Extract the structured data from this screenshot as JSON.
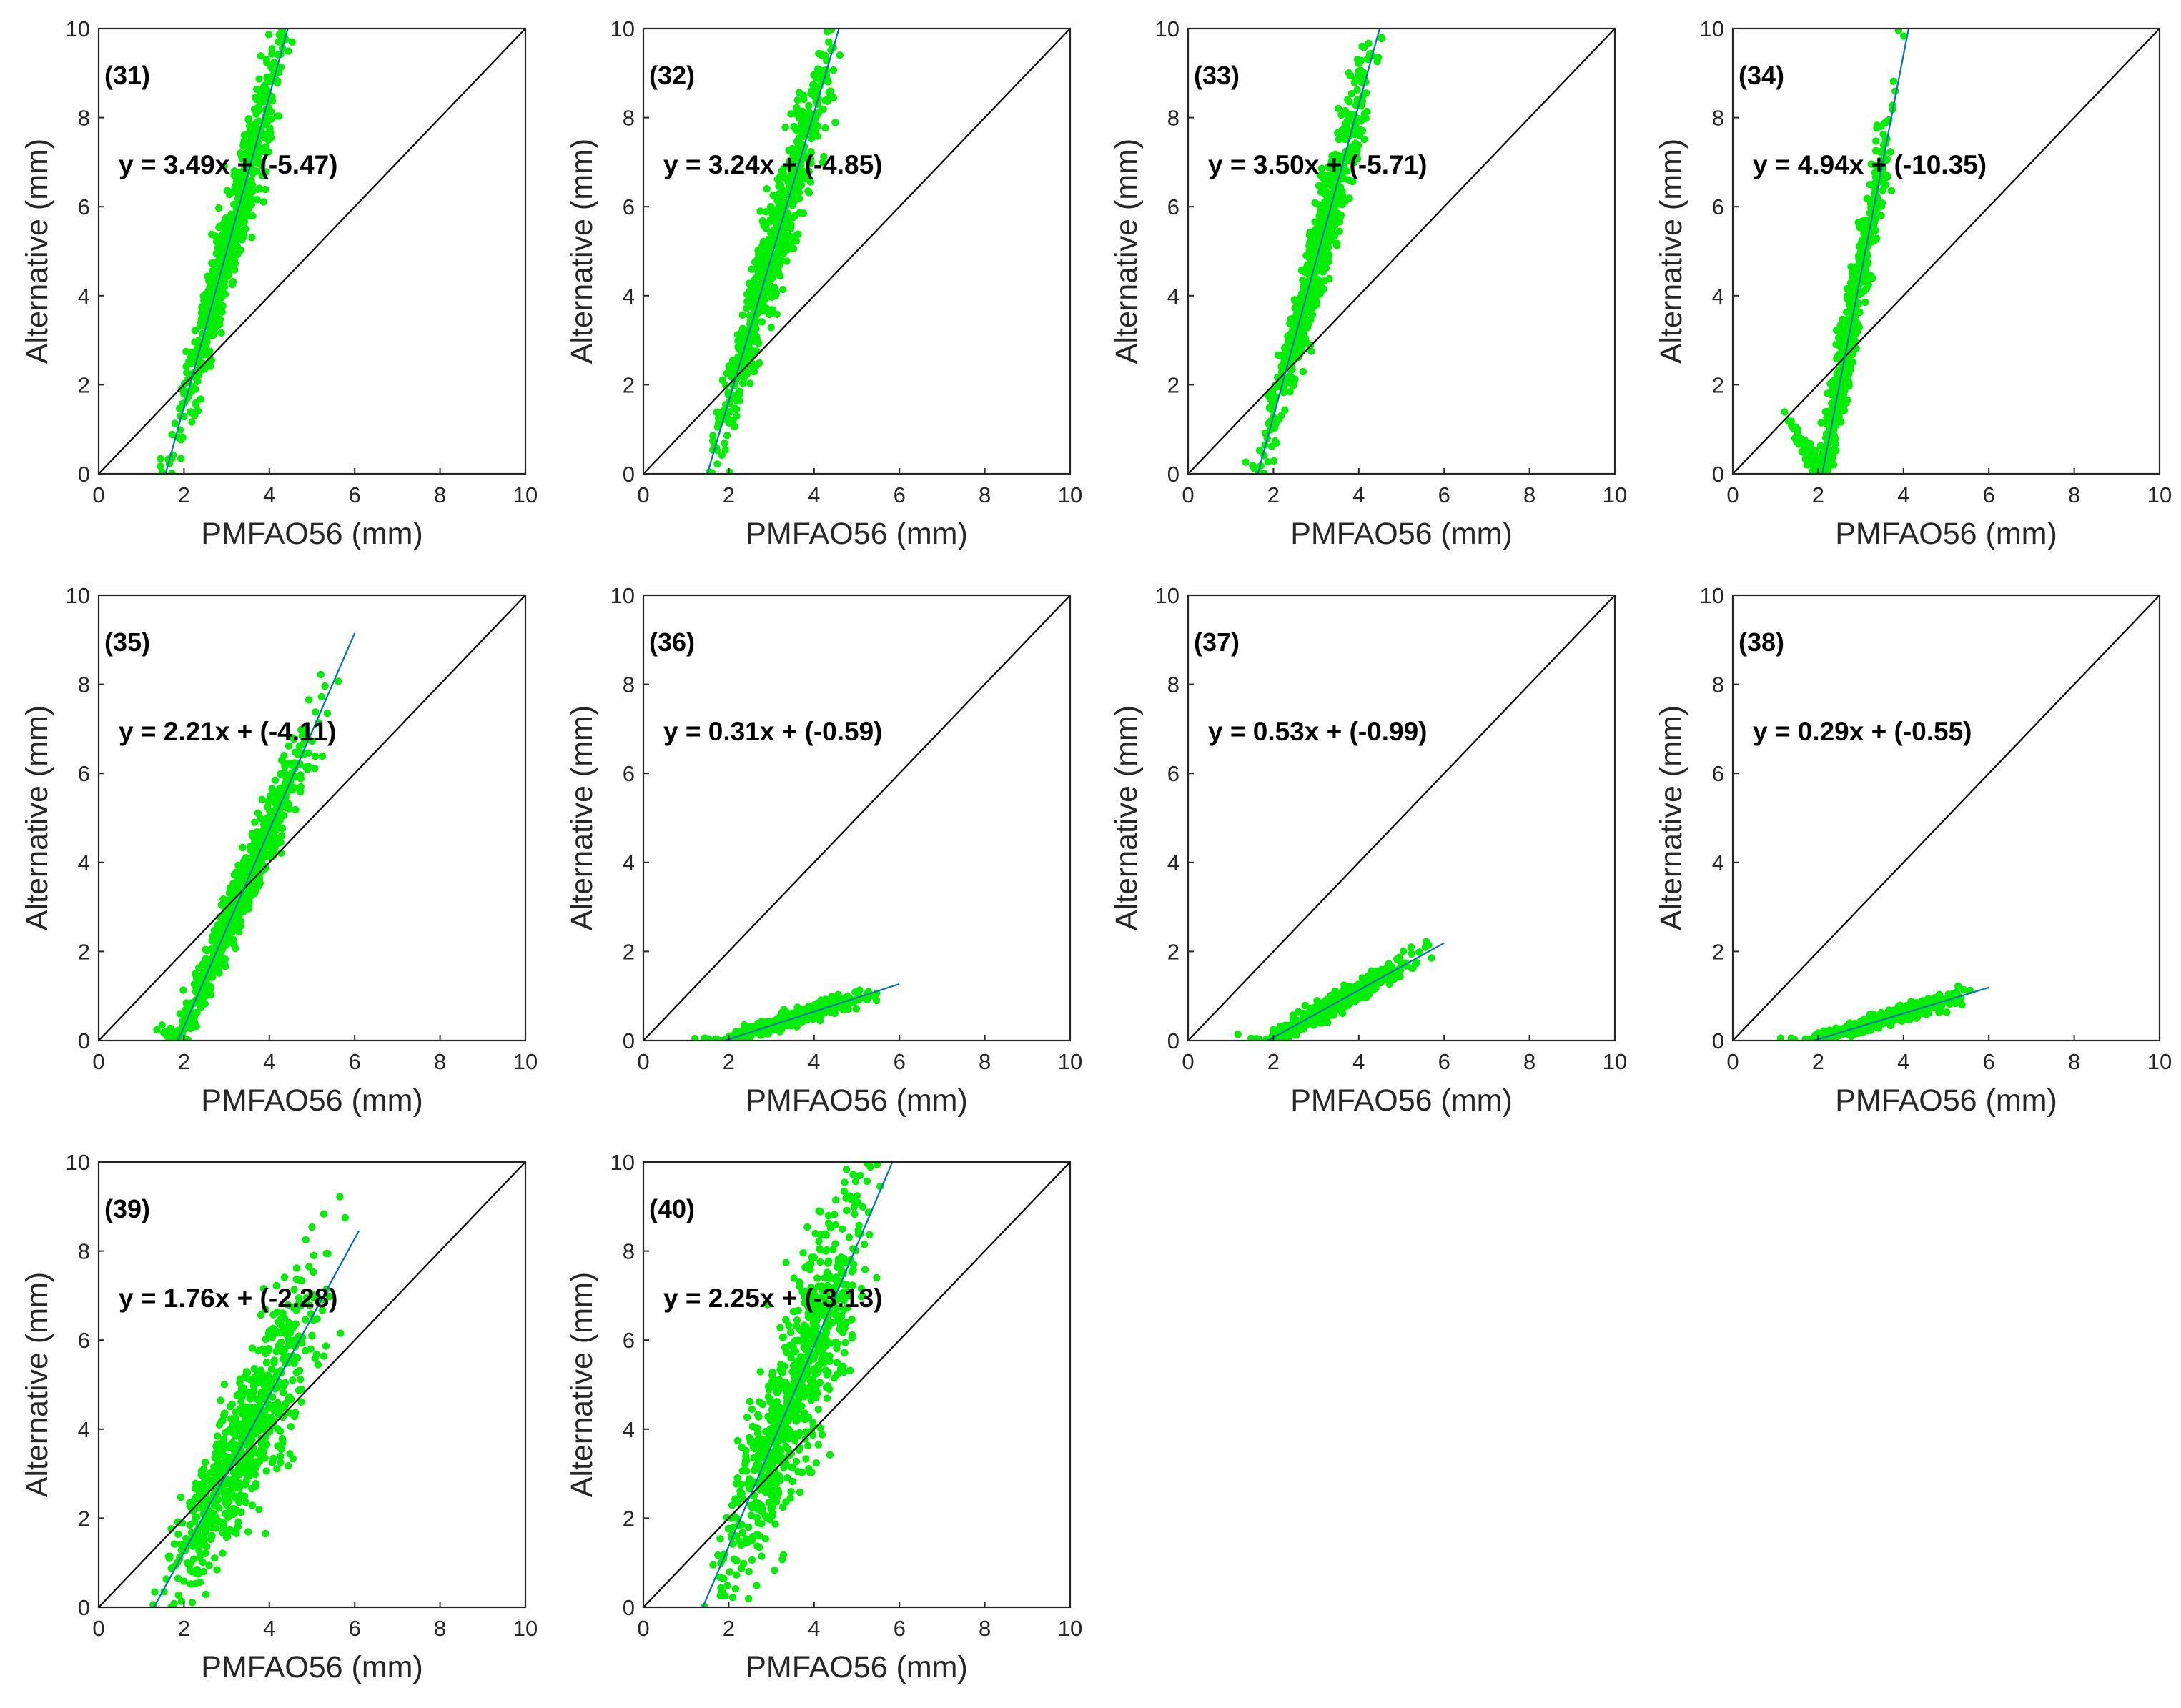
{
  "colors": {
    "points": "#00ee00",
    "fit_line": "#0072bd",
    "one_to_one": "#000000",
    "axis": "#262626"
  },
  "chart_data": [
    {
      "type": "scatter",
      "label": "(31)",
      "equation": "y = 3.49x + (-5.47)",
      "slope": 3.49,
      "intercept": -5.47,
      "xlabel": "PMFAO56 (mm)",
      "ylabel": "Alternative (mm)",
      "xlim": [
        0,
        10
      ],
      "ylim": [
        0,
        10
      ],
      "xticks": [
        "0",
        "2",
        "4",
        "6",
        "8",
        "10"
      ],
      "yticks": [
        "0",
        "2",
        "4",
        "6",
        "8",
        "10"
      ],
      "point_cloud": {
        "x_range": [
          1.2,
          4.9
        ],
        "n": 700,
        "spread": 0.75
      },
      "reference_line": "1:1"
    },
    {
      "type": "scatter",
      "label": "(32)",
      "equation": "y = 3.24x + (-4.85)",
      "slope": 3.24,
      "intercept": -4.85,
      "xlabel": "PMFAO56 (mm)",
      "ylabel": "Alternative (mm)",
      "xlim": [
        0,
        10
      ],
      "ylim": [
        0,
        10
      ],
      "xticks": [
        "0",
        "2",
        "4",
        "6",
        "8",
        "10"
      ],
      "yticks": [
        "0",
        "2",
        "4",
        "6",
        "8",
        "10"
      ],
      "point_cloud": {
        "x_range": [
          1.2,
          5.0
        ],
        "n": 700,
        "spread": 0.8
      },
      "reference_line": "1:1"
    },
    {
      "type": "scatter",
      "label": "(33)",
      "equation": "y = 3.50x + (-5.71)",
      "slope": 3.5,
      "intercept": -5.71,
      "xlabel": "PMFAO56 (mm)",
      "ylabel": "Alternative (mm)",
      "xlim": [
        0,
        10
      ],
      "ylim": [
        0,
        10
      ],
      "xticks": [
        "0",
        "2",
        "4",
        "6",
        "8",
        "10"
      ],
      "yticks": [
        "0",
        "2",
        "4",
        "6",
        "8",
        "10"
      ],
      "point_cloud": {
        "x_range": [
          1.2,
          4.9
        ],
        "n": 700,
        "spread": 0.75
      },
      "reference_line": "1:1"
    },
    {
      "type": "scatter",
      "label": "(34)",
      "equation": "y = 4.94x + (-10.35)",
      "slope": 4.94,
      "intercept": -10.35,
      "xlabel": "PMFAO56 (mm)",
      "ylabel": "Alternative (mm)",
      "xlim": [
        0,
        10
      ],
      "ylim": [
        0,
        10
      ],
      "xticks": [
        "0",
        "2",
        "4",
        "6",
        "8",
        "10"
      ],
      "yticks": [
        "0",
        "2",
        "4",
        "6",
        "8",
        "10"
      ],
      "point_cloud": {
        "x_range": [
          1.0,
          4.2
        ],
        "n": 700,
        "spread": 0.65
      },
      "reference_line": "1:1"
    },
    {
      "type": "scatter",
      "label": "(35)",
      "equation": "y = 2.21x + (-4.11)",
      "slope": 2.21,
      "intercept": -4.11,
      "xlabel": "PMFAO56 (mm)",
      "ylabel": "Alternative (mm)",
      "xlim": [
        0,
        10
      ],
      "ylim": [
        0,
        10
      ],
      "xticks": [
        "0",
        "2",
        "4",
        "6",
        "8",
        "10"
      ],
      "yticks": [
        "0",
        "2",
        "4",
        "6",
        "8",
        "10"
      ],
      "point_cloud": {
        "x_range": [
          1.0,
          5.9
        ],
        "n": 650,
        "spread": 0.5
      },
      "reference_line": "1:1"
    },
    {
      "type": "scatter",
      "label": "(36)",
      "equation": "y = 0.31x + (-0.59)",
      "slope": 0.31,
      "intercept": -0.59,
      "xlabel": "PMFAO56 (mm)",
      "ylabel": "Alternative (mm)",
      "xlim": [
        0,
        10
      ],
      "ylim": [
        0,
        10
      ],
      "xticks": [
        "0",
        "2",
        "4",
        "6",
        "8",
        "10"
      ],
      "yticks": [
        "0",
        "2",
        "4",
        "6",
        "8",
        "10"
      ],
      "point_cloud": {
        "x_range": [
          1.0,
          5.9
        ],
        "n": 550,
        "spread": 0.1
      },
      "reference_line": "1:1"
    },
    {
      "type": "scatter",
      "label": "(37)",
      "equation": "y = 0.53x + (-0.99)",
      "slope": 0.53,
      "intercept": -0.99,
      "xlabel": "PMFAO56 (mm)",
      "ylabel": "Alternative (mm)",
      "xlim": [
        0,
        10
      ],
      "ylim": [
        0,
        10
      ],
      "xticks": [
        "0",
        "2",
        "4",
        "6",
        "8",
        "10"
      ],
      "yticks": [
        "0",
        "2",
        "4",
        "6",
        "8",
        "10"
      ],
      "point_cloud": {
        "x_range": [
          1.0,
          5.9
        ],
        "n": 550,
        "spread": 0.15
      },
      "reference_line": "1:1"
    },
    {
      "type": "scatter",
      "label": "(38)",
      "equation": "y = 0.29x + (-0.55)",
      "slope": 0.29,
      "intercept": -0.55,
      "xlabel": "PMFAO56 (mm)",
      "ylabel": "Alternative (mm)",
      "xlim": [
        0,
        10
      ],
      "ylim": [
        0,
        10
      ],
      "xticks": [
        "0",
        "2",
        "4",
        "6",
        "8",
        "10"
      ],
      "yticks": [
        "0",
        "2",
        "4",
        "6",
        "8",
        "10"
      ],
      "point_cloud": {
        "x_range": [
          1.0,
          5.9
        ],
        "n": 550,
        "spread": 0.1
      },
      "reference_line": "1:1"
    },
    {
      "type": "scatter",
      "label": "(39)",
      "equation": "y = 1.76x + (-2.28)",
      "slope": 1.76,
      "intercept": -2.28,
      "xlabel": "PMFAO56 (mm)",
      "ylabel": "Alternative (mm)",
      "xlim": [
        0,
        10
      ],
      "ylim": [
        0,
        10
      ],
      "xticks": [
        "0",
        "2",
        "4",
        "6",
        "8",
        "10"
      ],
      "yticks": [
        "0",
        "2",
        "4",
        "6",
        "8",
        "10"
      ],
      "point_cloud": {
        "x_range": [
          1.0,
          6.0
        ],
        "n": 700,
        "spread": 1.1
      },
      "reference_line": "1:1"
    },
    {
      "type": "scatter",
      "label": "(40)",
      "equation": "y = 2.25x + (-3.13)",
      "slope": 2.25,
      "intercept": -3.13,
      "xlabel": "PMFAO56 (mm)",
      "ylabel": "Alternative (mm)",
      "xlim": [
        0,
        10
      ],
      "ylim": [
        0,
        10
      ],
      "xticks": [
        "0",
        "2",
        "4",
        "6",
        "8",
        "10"
      ],
      "yticks": [
        "0",
        "2",
        "4",
        "6",
        "8",
        "10"
      ],
      "point_cloud": {
        "x_range": [
          1.2,
          6.0
        ],
        "n": 750,
        "spread": 1.4
      },
      "reference_line": "1:1"
    }
  ]
}
